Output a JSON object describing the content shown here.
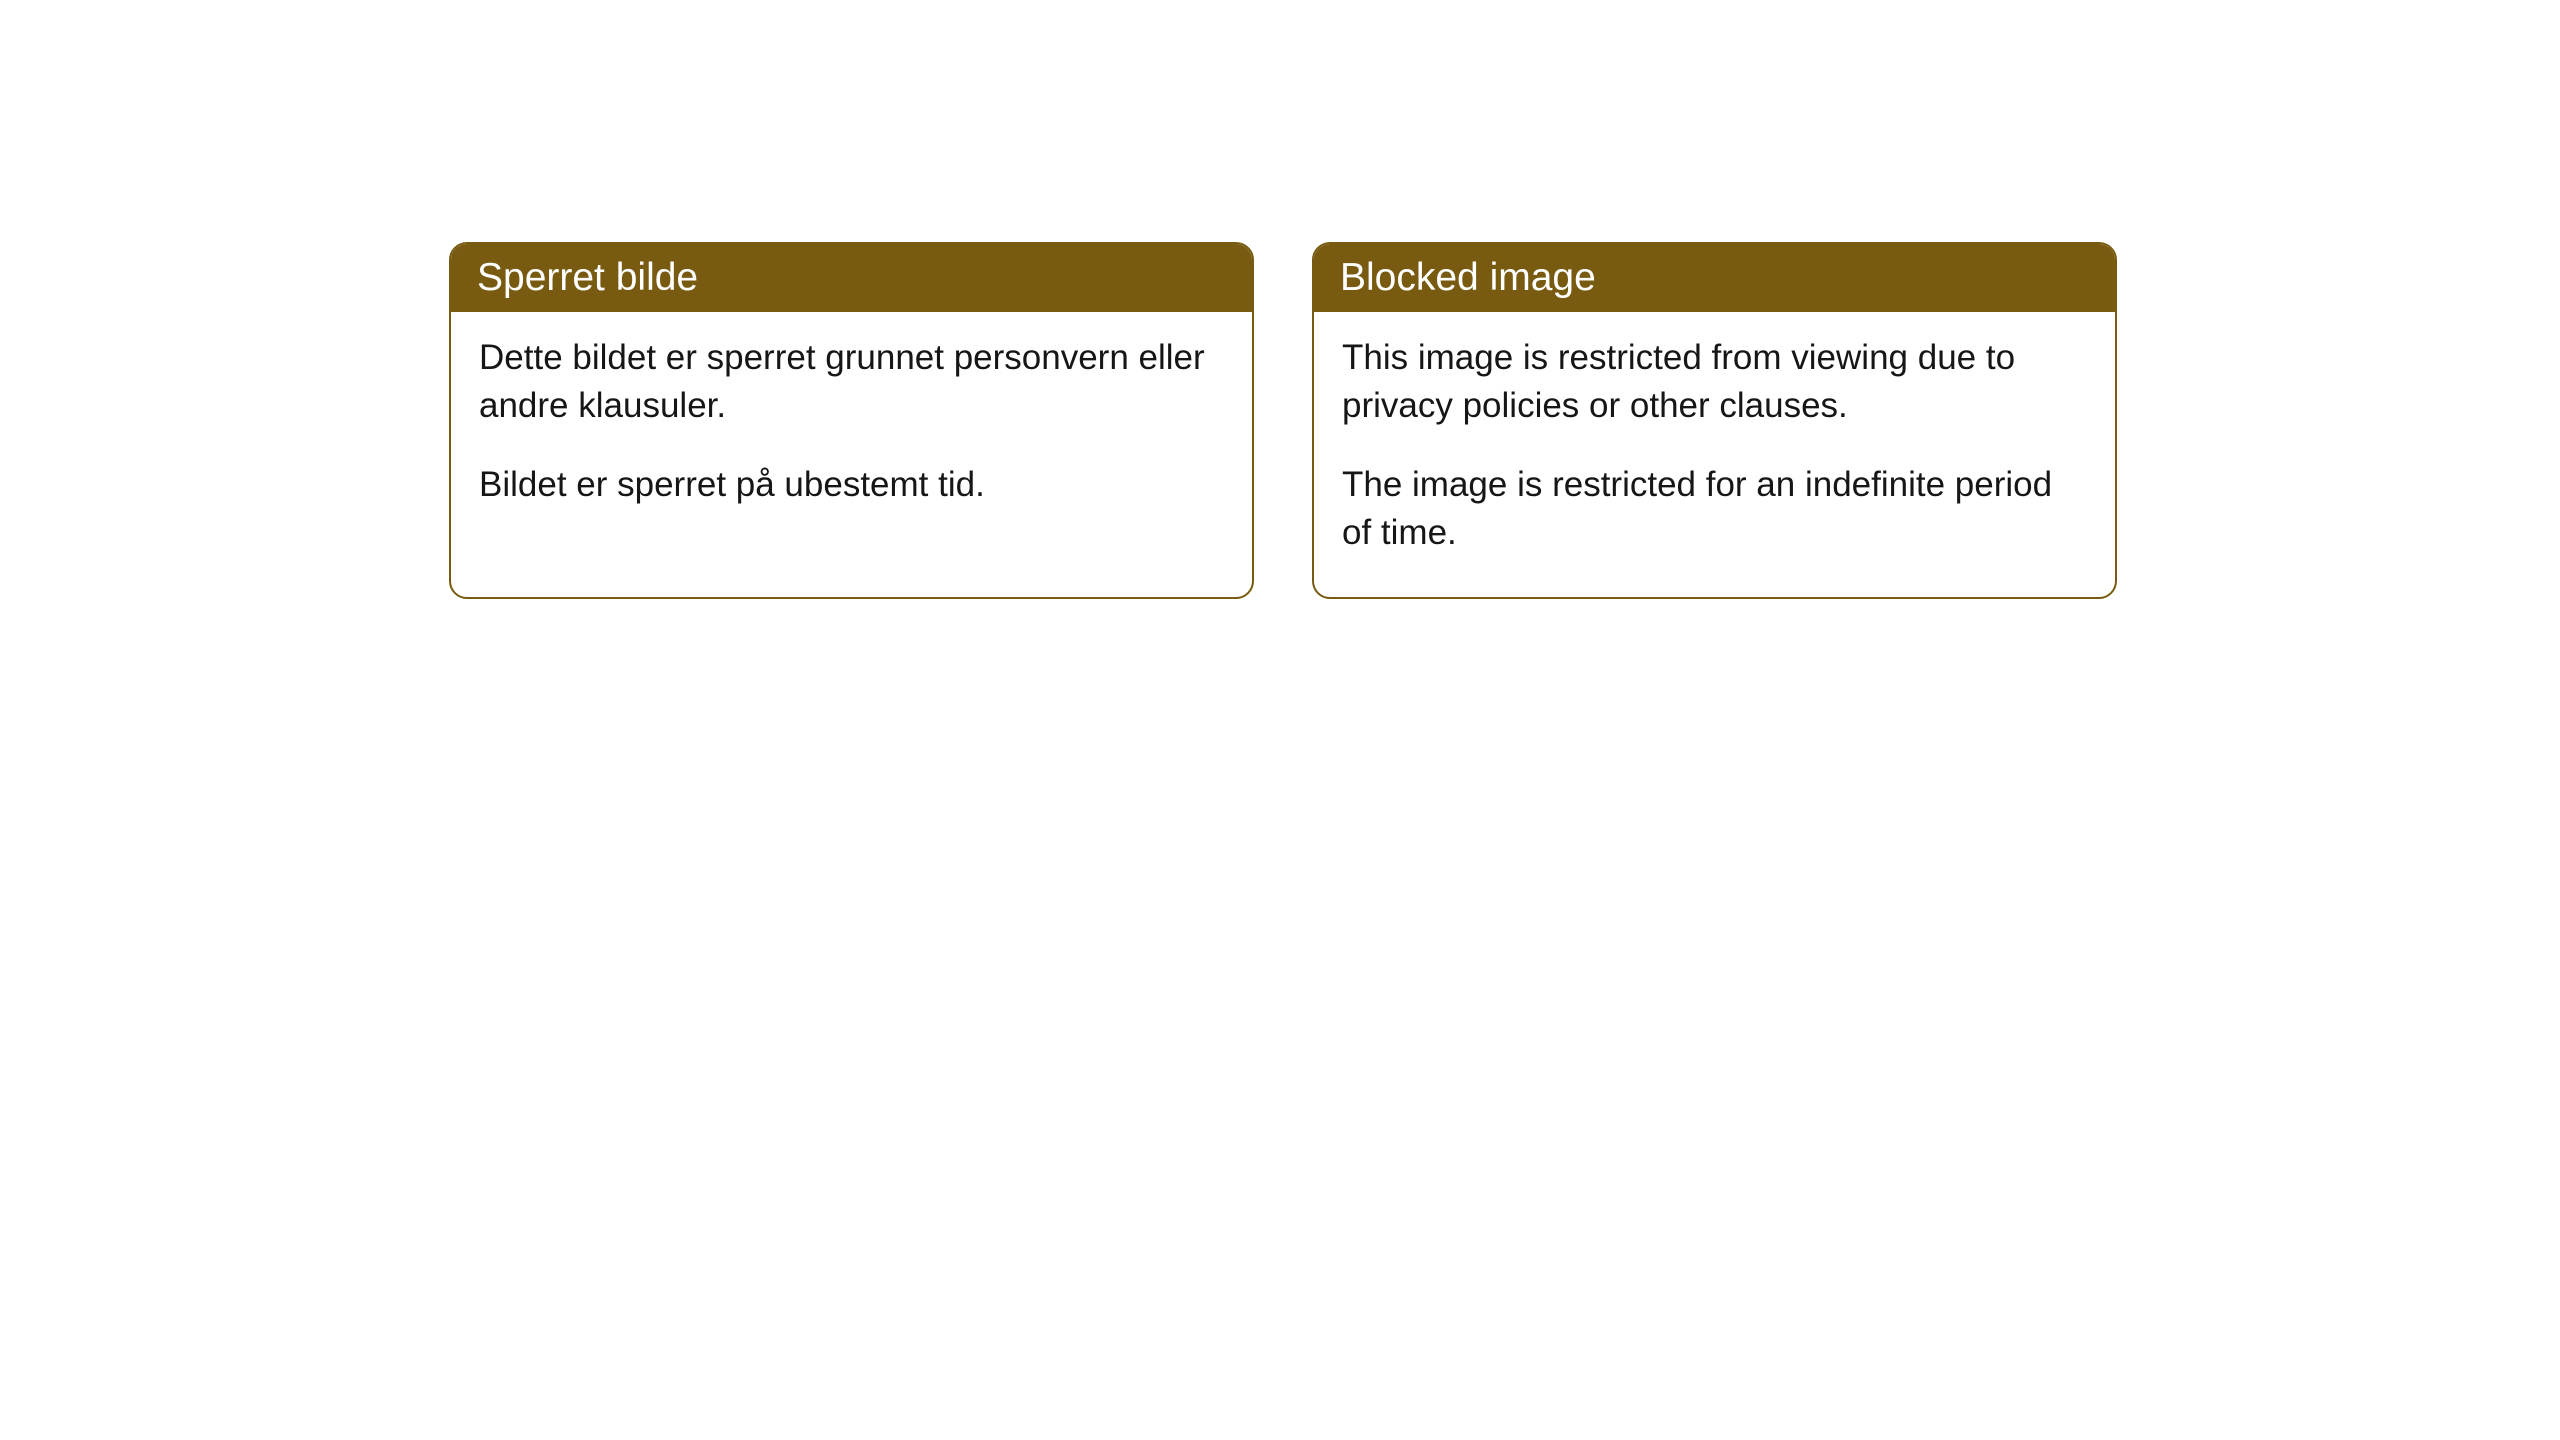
{
  "cards": [
    {
      "title": "Sperret bilde",
      "paragraph1": "Dette bildet er sperret grunnet personvern eller andre klausuler.",
      "paragraph2": "Bildet er sperret på ubestemt tid."
    },
    {
      "title": "Blocked image",
      "paragraph1": "This image is restricted from viewing due to privacy policies or other clauses.",
      "paragraph2": "The image is restricted for an indefinite period of time."
    }
  ],
  "style": {
    "header_bg_color": "#785a10",
    "header_text_color": "#ffffff",
    "border_color": "#785a10",
    "body_bg_color": "#ffffff",
    "body_text_color": "#161616",
    "border_radius": 18,
    "header_fontsize": 39,
    "body_fontsize": 35
  }
}
